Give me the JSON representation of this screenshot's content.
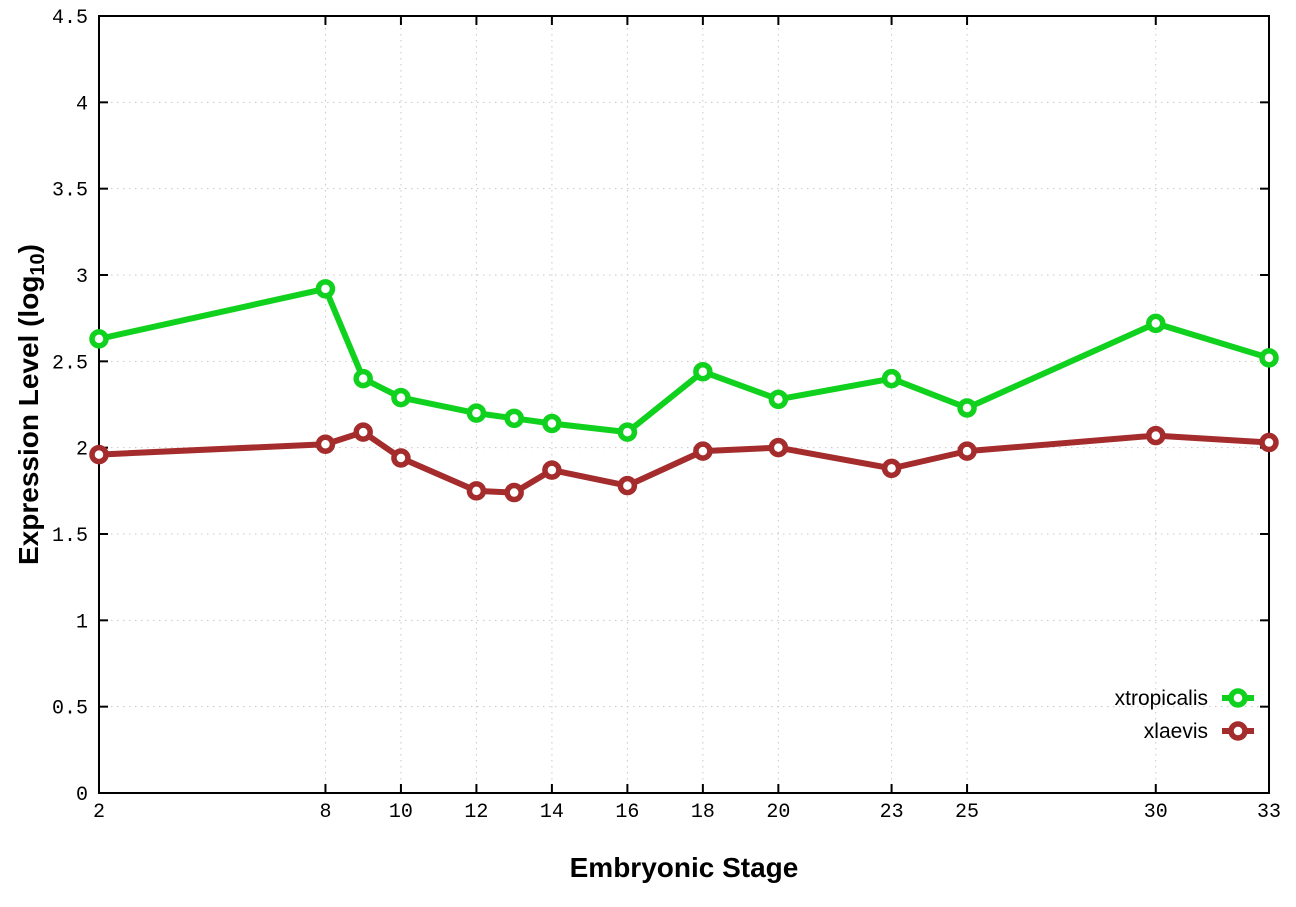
{
  "figure": {
    "background_color": "#ffffff",
    "axis_color": "#000000",
    "grid_color": "#c8c8c8"
  },
  "chart_data": {
    "type": "line",
    "title": "",
    "xlabel": "Embryonic Stage",
    "ylabel": {
      "prefix": "Expression Level (log",
      "sub": "10",
      "suffix": ")"
    },
    "xlim": [
      2,
      33
    ],
    "ylim": [
      0,
      4.5
    ],
    "grid": true,
    "legend_position": "bottom-right",
    "xticks": [
      2,
      8,
      10,
      12,
      14,
      16,
      18,
      20,
      23,
      25,
      30,
      33
    ],
    "yticks": [
      0,
      0.5,
      1,
      1.5,
      2,
      2.5,
      3,
      3.5,
      4,
      4.5
    ],
    "x": [
      2,
      8,
      9,
      10,
      12,
      13,
      14,
      16,
      18,
      20,
      23,
      25,
      30,
      33
    ],
    "series": [
      {
        "name": "xtropicalis",
        "color": "#10d21e",
        "marker": "open-circle",
        "values": [
          2.63,
          2.92,
          2.4,
          2.29,
          2.2,
          2.17,
          2.14,
          2.09,
          2.44,
          2.28,
          2.4,
          2.23,
          2.72,
          2.52
        ]
      },
      {
        "name": "xlaevis",
        "color": "#a52c2c",
        "marker": "open-circle",
        "values": [
          1.96,
          2.02,
          2.09,
          1.94,
          1.75,
          1.74,
          1.87,
          1.78,
          1.98,
          2.0,
          1.88,
          1.98,
          2.07,
          2.03
        ]
      }
    ]
  }
}
